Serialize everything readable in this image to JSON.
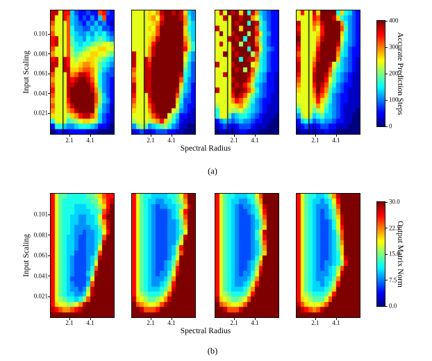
{
  "figure": {
    "background": "#ffffff",
    "axis_color": "#000000"
  },
  "chart_data": {
    "type": "heatmap",
    "colormap": {
      "name": "jet",
      "stops": [
        [
          0.0,
          "#00007f"
        ],
        [
          0.125,
          "#0000ff"
        ],
        [
          0.375,
          "#00ffff"
        ],
        [
          0.625,
          "#ffff00"
        ],
        [
          0.875,
          "#ff0000"
        ],
        [
          1.0,
          "#7f0000"
        ]
      ]
    },
    "grid_encoding": "hex digits 0-15, row-major top to bottom; value = digit/15 * (vmax - vmin) + vmin",
    "rows": [
      {
        "caption": "(a)",
        "ylabel": "Input Scaling",
        "xlabel": "Spectral Radius",
        "yticks": [
          "0.101",
          "0.081",
          "0.061",
          "0.041",
          "0.021"
        ],
        "xticks": [
          "2.1",
          "4.1"
        ],
        "vline_frac": 0.19,
        "colorbar": {
          "label": "Accurate Prediction Steps",
          "vmin": 0,
          "vmax": 400,
          "ticks": [
            "400",
            "300",
            "200",
            "100",
            "0"
          ]
        },
        "panels": [
          {
            "grid": [
              "ee9dd5322322cd32",
              "e99dc54232425c22",
              "c999c54324353421",
              "b999c64433545332",
              "c999c65445465643",
              "de99c75546567654",
              "de99c76566788998",
              "c999c8667899aa99",
              "b999c87899aa9987",
              "de9ed9899aa98765",
              "ee9ed99abba97654",
              "e99eeaabccb97543",
              "c999ebceedb96433",
              "b999edeffec96432",
              "c999eeffffda6432",
              "d999efffffeb7432",
              "c999effffffc8532",
              "b999dffffffc8542",
              "c999cefffffb7431",
              "b999bceffffa6431",
              "a9998abdeeca5321",
              "69996789aa985321",
              "2665445666542210",
              "0121122221110000"
            ]
          },
          {
            "grid": [
              "9999a9beffefea54",
              "9999ab9dffffeb64",
              "99999abefffffb75",
              "9999a9cffffffa65",
              "99999acffffffa75",
              "9999abeffffffb85",
              "9999adfffffffc96",
              "9999befffffffd96",
              "e999befffffffa64",
              "e99ecffffffff964",
              "e99edffffffff853",
              "c99eeffffffff753",
              "b99eefffffffe653",
              "c99eefffffffc643",
              "e99eefffffffa542",
              "e99eeffffffe8542",
              "d999effffffc7432",
              "c999dffffffa6332",
              "b999cefffff95322",
              "a999beffff984321",
              "9999aceff9752211",
              "89998abda8642111",
              "4787456786431100",
              "1232123332211000"
            ]
          },
          {
            "grid": [
              "9e9fefaf6eb54322",
              "99e9ffeffb964322",
              "9999feff6fe75322",
              "e999ffafffc65322",
              "9f99efff8fd95422",
              "999efef6ffb75322",
              "9e99ff8fefc85322",
              "9999efff6fe95432",
              "99f9fefff8c75322",
              "9999ff6feeb65322",
              "e999effff9a65322",
              "9999fef8fc865322",
              "99e9ffffeb754221",
              "9999efffda654221",
              "9999fefdb8543221",
              "e999effeca643221",
              "9999dfec97543211",
              "9999bdca86432211",
              "89999ab975432111",
              "6999889765432111",
              "6997456654321110",
              "2454345443221100",
              "1232123332111000",
              "0111012211100000"
            ]
          },
          {
            "grid": [
              "9d99eaffff6a6532",
              "9999dcfffea65432",
              "e999cbeffffb6432",
              "d999b9dffffc7432",
              "e9999adffffa6432",
              "f9999beffff96432",
              "e9999cffffe85432",
              "d9999dffffc75322",
              "c999aeffffb65322",
              "d999beffffa54321",
              "e999cfffe9754321",
              "e999dfffc8654321",
              "d999effeb7543211",
              "c999effd97543211",
              "b999dfec86432211",
              "a999cfdb75432111",
              "9999beca64322111",
              "9999ada864322111",
              "89998b9754321111",
              "6999789654321110",
              "4898567554321100",
              "2565345443221100",
              "1232123322111000",
              "0111011211000000"
            ]
          }
        ]
      },
      {
        "caption": "(b)",
        "ylabel": "Input Scaling",
        "xlabel": "Spectral Radius",
        "yticks": [
          "0.101",
          "0.081",
          "0.061",
          "0.041",
          "0.021"
        ],
        "xticks": [
          "2.1",
          "4.1"
        ],
        "vline_frac": null,
        "colorbar": {
          "label": "Output Matrix Norm",
          "vmin": 0.0,
          "vmax": 30.0,
          "ticks": [
            "30.0",
            "22.5",
            "15.0",
            "7.5",
            "0.0"
          ]
        },
        "panels": [
          {
            "grid": [
              "d97766666778acdd",
              "d976666666779bde",
              "d976665556678adf",
              "d976665555667cef",
              "d976655445569dff",
              "d976655445568bef",
              "d976654444557aef",
              "d9766544344569df",
              "d976554334456cff",
              "d976554334457eff",
              "d976554334459fff",
              "d97655333446cfff",
              "d97654333457efff",
              "d97654333459ffff",
              "d9765433346cffff",
              "d9765433357effff",
              "d9765333349fffff",
              "d976543335cfffff",
              "d976544348efffff",
              "d976554459efffff",
              "d98766568cffffff",
              "da99889befffffff",
              "edcbbcdeffffffff",
              "ffffffffffffffff"
            ]
          },
          {
            "grid": [
              "d976655556679cff",
              "d976554455678bff",
              "d976543445567aef",
              "d976543334569dff",
              "d976543334568cff",
              "d976543334457bff",
              "d976543334457aff",
              "d9765433344569ff",
              "d976543334458eff",
              "d976543334469fff",
              "d97654333458dfff",
              "d97654333458cfff",
              "d97654333469ffff",
              "d9765433457bffff",
              "d9765433458dffff",
              "d9765434469effff",
              "d976544457bfffff",
              "d976544568dfffff",
              "d97655567aefffff",
              "d98766679cffffff",
              "ea987789beffffff",
              "fcba99acefffffff",
              "ffecccdfffffffff",
              "ffffffffffffffff"
            ]
          },
          {
            "grid": [
              "d9766555669cffff",
              "d9765544568bffff",
              "d9765434457aefff",
              "d97654334569dfff",
              "d97654333468cfff",
              "d97654333457bfff",
              "d97654333457afff",
              "d97654333469efff",
              "d97654333468dfff",
              "d97654333458cfff",
              "d97654333457bfff",
              "d97654333457afff",
              "d97654333469ffff",
              "d9765433457bffff",
              "d9765433458dffff",
              "d9765434469effff",
              "d976544457bfffff",
              "d976544569dfffff",
              "d97655568bffffff",
              "d98766679dffffff",
              "ea987789cfffffff",
              "fcba99acffffffff",
              "ffecccefffffffff",
              "ffffffffffffffff"
            ]
          },
          {
            "grid": [
              "d97665568befffff",
              "d976554569dfffff",
              "d976544468cfffff",
              "d976543457bfffff",
              "d976543457aeffff",
              "d9765433469effff",
              "d9765433469dffff",
              "d9765433458cffff",
              "d9765433457cffff",
              "d9765433457bffff",
              "d9765433457affff",
              "d9765433456affff",
              "d97654334569efff",
              "d97654344568dfff",
              "d9765434568cffff",
              "d9765444569effff",
              "d976544557bfffff",
              "d976554568dfffff",
              "d97655567affffff",
              "d98766679dffffff",
              "da987779cfffffff",
              "eca999acffffffff",
              "fedcbcefffffffff",
              "ffffffffffffffff"
            ]
          }
        ]
      }
    ]
  }
}
